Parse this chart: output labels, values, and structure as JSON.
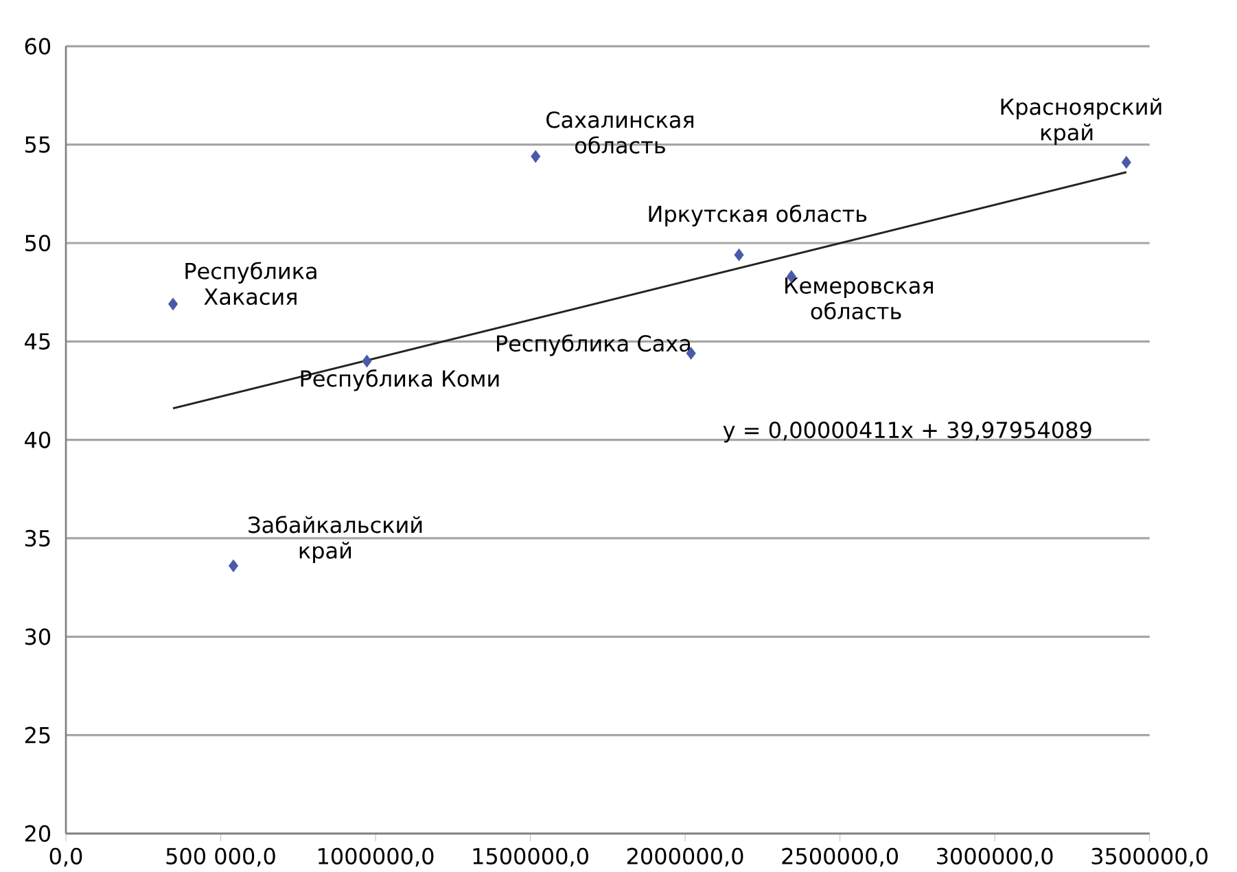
{
  "chart_data": {
    "type": "scatter",
    "grid": "y",
    "xlim": [
      0,
      3500000
    ],
    "ylim": [
      20,
      60
    ],
    "xticks": [
      {
        "value": 0,
        "label": "0,0"
      },
      {
        "value": 500000,
        "label": "500 000,0"
      },
      {
        "value": 1000000,
        "label": "1000000,0"
      },
      {
        "value": 1500000,
        "label": "1500000,0"
      },
      {
        "value": 2000000,
        "label": "2000000,0"
      },
      {
        "value": 2500000,
        "label": "2500000,0"
      },
      {
        "value": 3000000,
        "label": "3000000,0"
      },
      {
        "value": 3500000,
        "label": "3500000,0"
      }
    ],
    "yticks": [
      20,
      25,
      30,
      35,
      40,
      45,
      50,
      55,
      60
    ],
    "series": [
      {
        "color": "#4a5aa8",
        "marker": "diamond",
        "x": [
          346000,
          541000,
          972000,
          1517000,
          2019000,
          2174000,
          2343000,
          3425000
        ],
        "values": [
          46.9,
          33.6,
          44.0,
          54.4,
          44.4,
          49.4,
          48.3,
          54.1
        ]
      },
      {
        "type": "line",
        "marker": "none",
        "color": "#222222",
        "x": [
          346000,
          3425000
        ],
        "values": [
          41.6,
          53.6
        ]
      }
    ],
    "annotations": [
      {
        "text": "Республика Хакасия",
        "x": 346000,
        "y": 46.9
      },
      {
        "text": "Забайкальский край",
        "x": 541000,
        "y": 33.6
      },
      {
        "text": "Республика Коми",
        "x": 972000,
        "y": 44.0
      },
      {
        "text": "Сахалинская область",
        "x": 1517000,
        "y": 54.4
      },
      {
        "text": "Республика Саха",
        "x": 2019000,
        "y": 44.4
      },
      {
        "text": "Иркутская область",
        "x": 2174000,
        "y": 49.4
      },
      {
        "text": "Кемеровская область",
        "x": 2343000,
        "y": 48.3
      },
      {
        "text": "Красноярский край",
        "x": 3425000,
        "y": 54.1
      },
      "y =  0,00000411x + 39,97954089"
    ]
  }
}
